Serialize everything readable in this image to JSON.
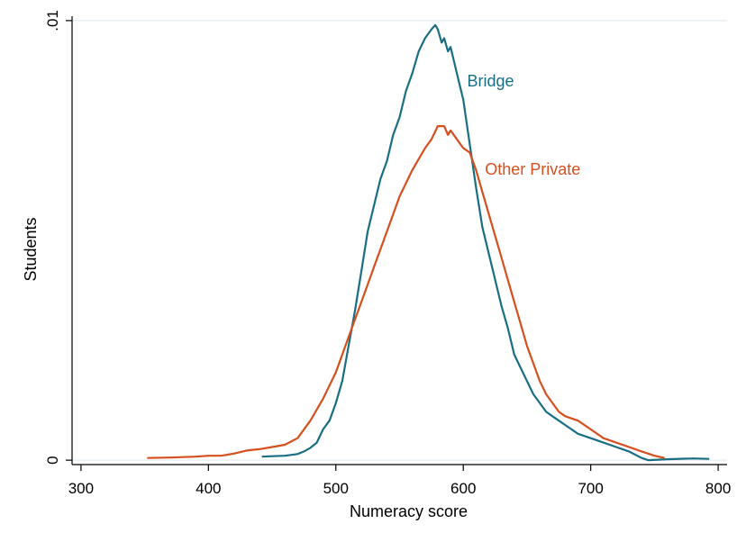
{
  "chart_data": {
    "type": "line",
    "title": "",
    "xlabel": "Numeracy score",
    "ylabel": "Students",
    "xlim": [
      293,
      807
    ],
    "ylim": [
      -0.0001,
      0.0101
    ],
    "x_ticks": [
      300,
      400,
      500,
      600,
      700,
      800
    ],
    "x_tick_labels": [
      "300",
      "400",
      "500",
      "600",
      "700",
      "800"
    ],
    "y_ticks": [
      0,
      0.01
    ],
    "y_tick_labels": [
      "0",
      ".01"
    ],
    "grid": "horizontal",
    "legend": "inline labels",
    "series": [
      {
        "name": "Bridge",
        "color": "#1a6e84",
        "label_at": [
          603,
          0.0085
        ],
        "points": [
          [
            442,
            8e-05
          ],
          [
            450,
            9e-05
          ],
          [
            460,
            0.0001
          ],
          [
            470,
            0.00014
          ],
          [
            475,
            0.0002
          ],
          [
            480,
            0.00028
          ],
          [
            485,
            0.0004
          ],
          [
            490,
            0.0007
          ],
          [
            495,
            0.0009
          ],
          [
            500,
            0.0013
          ],
          [
            505,
            0.0018
          ],
          [
            510,
            0.0026
          ],
          [
            515,
            0.0034
          ],
          [
            520,
            0.0043
          ],
          [
            525,
            0.0052
          ],
          [
            530,
            0.0058
          ],
          [
            535,
            0.0064
          ],
          [
            540,
            0.0068
          ],
          [
            545,
            0.0074
          ],
          [
            550,
            0.0078
          ],
          [
            555,
            0.0084
          ],
          [
            560,
            0.0088
          ],
          [
            565,
            0.0093
          ],
          [
            570,
            0.0096
          ],
          [
            575,
            0.0098
          ],
          [
            578,
            0.0099
          ],
          [
            580,
            0.0098
          ],
          [
            583,
            0.0095
          ],
          [
            585,
            0.0096
          ],
          [
            588,
            0.0093
          ],
          [
            590,
            0.0094
          ],
          [
            595,
            0.0088
          ],
          [
            600,
            0.0082
          ],
          [
            605,
            0.0072
          ],
          [
            610,
            0.0062
          ],
          [
            615,
            0.0053
          ],
          [
            620,
            0.0047
          ],
          [
            625,
            0.0041
          ],
          [
            630,
            0.0035
          ],
          [
            635,
            0.003
          ],
          [
            640,
            0.0024
          ],
          [
            645,
            0.0021
          ],
          [
            650,
            0.0018
          ],
          [
            655,
            0.0015
          ],
          [
            660,
            0.0013
          ],
          [
            665,
            0.0011
          ],
          [
            670,
            0.001
          ],
          [
            675,
            0.0009
          ],
          [
            680,
            0.0008
          ],
          [
            685,
            0.0007
          ],
          [
            690,
            0.0006
          ],
          [
            700,
            0.0005
          ],
          [
            710,
            0.0004
          ],
          [
            720,
            0.0003
          ],
          [
            730,
            0.0002
          ],
          [
            740,
            5e-05
          ],
          [
            745,
            0.0
          ],
          [
            760,
            2e-05
          ],
          [
            780,
            4e-05
          ],
          [
            793,
            3e-05
          ]
        ]
      },
      {
        "name": "Other Private",
        "color": "#d64f1e",
        "label_at": [
          617,
          0.0065
        ],
        "points": [
          [
            352,
            5e-05
          ],
          [
            370,
            6e-05
          ],
          [
            390,
            8e-05
          ],
          [
            400,
            0.0001
          ],
          [
            410,
            0.0001
          ],
          [
            420,
            0.00015
          ],
          [
            430,
            0.00022
          ],
          [
            440,
            0.00025
          ],
          [
            450,
            0.0003
          ],
          [
            460,
            0.00035
          ],
          [
            470,
            0.0005
          ],
          [
            480,
            0.0009
          ],
          [
            490,
            0.0014
          ],
          [
            500,
            0.002
          ],
          [
            510,
            0.0028
          ],
          [
            520,
            0.0036
          ],
          [
            530,
            0.0044
          ],
          [
            540,
            0.0052
          ],
          [
            550,
            0.006
          ],
          [
            560,
            0.0066
          ],
          [
            570,
            0.0071
          ],
          [
            575,
            0.0073
          ],
          [
            580,
            0.0076
          ],
          [
            585,
            0.0076
          ],
          [
            588,
            0.0074
          ],
          [
            590,
            0.0075
          ],
          [
            595,
            0.0073
          ],
          [
            600,
            0.0071
          ],
          [
            605,
            0.007
          ],
          [
            610,
            0.0066
          ],
          [
            615,
            0.0061
          ],
          [
            620,
            0.0056
          ],
          [
            625,
            0.0051
          ],
          [
            630,
            0.0046
          ],
          [
            635,
            0.0041
          ],
          [
            640,
            0.0036
          ],
          [
            645,
            0.0031
          ],
          [
            650,
            0.0026
          ],
          [
            655,
            0.0022
          ],
          [
            660,
            0.0018
          ],
          [
            665,
            0.0015
          ],
          [
            670,
            0.0013
          ],
          [
            675,
            0.0011
          ],
          [
            680,
            0.001
          ],
          [
            690,
            0.0009
          ],
          [
            700,
            0.0007
          ],
          [
            710,
            0.0005
          ],
          [
            720,
            0.0004
          ],
          [
            730,
            0.0003
          ],
          [
            740,
            0.0002
          ],
          [
            750,
            0.0001
          ],
          [
            758,
            5e-05
          ]
        ]
      }
    ]
  },
  "colors": {
    "bridge": "#1a6e84",
    "other_private": "#d64f1e",
    "grid": "#e6eef1",
    "axis": "#000000"
  }
}
